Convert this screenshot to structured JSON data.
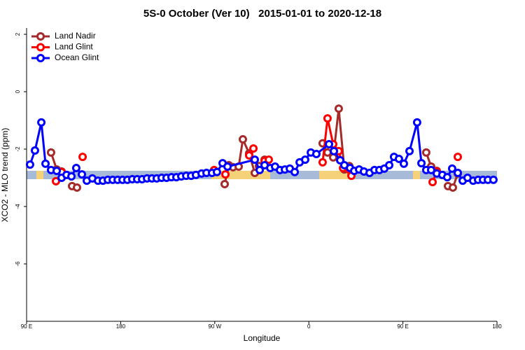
{
  "chart_data": {
    "type": "line",
    "title": "5S-0 October (Ver 10)   2015-01-01 to 2020-12-18",
    "x_label": "Longitude",
    "y_label": "XCO2 - MLO trend (ppm)",
    "xlim": [
      90,
      540
    ],
    "ylim": [
      -8,
      2.2
    ],
    "xticks": [
      {
        "value": 90,
        "label": "90 E"
      },
      180,
      {
        "value": 270,
        "label": "90 W"
      },
      {
        "value": 360,
        "label": "0"
      },
      {
        "value": 450,
        "label": "90 E"
      },
      {
        "value": 540,
        "label": "180"
      }
    ],
    "yticks": [
      -6,
      -4,
      -2,
      0,
      2
    ],
    "legend": "top-left",
    "series": [
      {
        "name": "Land Nadir",
        "color": "#a52a2a",
        "x": [
          113.4,
          118.8,
          123.5,
          null,
          133.5,
          138.2,
          null,
          279.5,
          283.5,
          287.5,
          292.9,
          296.9,
          302.9,
          308.3,
          312.3,
          317.7,
          null,
          373.2,
          377.9,
          383.3,
          388.6,
          394,
          398.7,
          null,
          472.3,
          477,
          482.4,
          null,
          493.1,
          497.8,
          502.5
        ],
        "values": [
          -2.12,
          -2.71,
          -2.78,
          null,
          -3.29,
          -3.34,
          null,
          -3.22,
          -2.56,
          -2.63,
          -2.61,
          -1.66,
          -2.15,
          -2.83,
          -2.59,
          -2.37,
          null,
          -1.8,
          -2.12,
          -2.29,
          -0.59,
          -2.71,
          -2.59,
          null,
          -2.12,
          -2.61,
          -2.76,
          null,
          -3.29,
          -3.34,
          -2.85
        ]
      },
      {
        "name": "Land Glint",
        "color": "#ff0000",
        "x": [
          118.1,
          123.5,
          null,
          143.6,
          null,
          269.4,
          null,
          280.2,
          null,
          302.9,
          307,
          null,
          317.7,
          321.7,
          null,
          373.2,
          377.9,
          383.3,
          388.6,
          392.7,
          400.7,
          null,
          478.4,
          482.4,
          null,
          502.5
        ],
        "values": [
          -3.12,
          -2.8,
          null,
          -2.27,
          null,
          -2.73,
          null,
          -2.88,
          null,
          -2.22,
          -1.98,
          null,
          -2.41,
          -2.37,
          null,
          -2.46,
          -0.93,
          -1.83,
          -2.07,
          -2.66,
          -2.93,
          null,
          -3.15,
          -2.78,
          null,
          -2.27
        ]
      },
      {
        "name": "Ocean Glint",
        "color": "#0000ff",
        "x": [
          93.3,
          98,
          104.1,
          108.1,
          113.4,
          118.8,
          123.5,
          128.2,
          132.9,
          137.5,
          142.9,
          147.6,
          152.9,
          158.3,
          163,
          167.7,
          172.4,
          177.1,
          181.8,
          186.4,
          191.1,
          195.8,
          200.5,
          205.2,
          209.9,
          214.5,
          219.2,
          223.9,
          228.6,
          233.3,
          238,
          242.7,
          247.4,
          252,
          257.4,
          262.1,
          267.4,
          272.1,
          277.5,
          282.2,
          308.3,
          313,
          317.7,
          323.1,
          327.7,
          332.4,
          337.1,
          341.8,
          346.5,
          351.2,
          356.5,
          361.9,
          367.2,
          379.3,
          384,
          390,
          394,
          399.4,
          403.4,
          408.1,
          412.7,
          418.1,
          422.8,
          427.5,
          432.2,
          436.9,
          441.5,
          446.2,
          450.9,
          456.3,
          463.6,
          467.7,
          472.3,
          477,
          482.4,
          487.7,
          492.4,
          497.1,
          502.5,
          507.2,
          511.8,
          517.2,
          521.9,
          526.6,
          531.3,
          536.6
        ],
        "values": [
          -2.54,
          -2.05,
          -1.07,
          -2.51,
          -2.73,
          -2.76,
          -3.0,
          -2.9,
          -2.95,
          -2.66,
          -2.88,
          -3.1,
          -3.02,
          -3.1,
          -3.1,
          -3.07,
          -3.07,
          -3.07,
          -3.07,
          -3.07,
          -3.05,
          -3.05,
          -3.05,
          -3.02,
          -3.02,
          -3.02,
          -3.0,
          -3.0,
          -2.98,
          -2.98,
          -2.95,
          -2.93,
          -2.93,
          -2.9,
          -2.85,
          -2.83,
          -2.83,
          -2.8,
          -2.49,
          -2.61,
          -2.37,
          -2.73,
          -2.56,
          -2.66,
          -2.61,
          -2.73,
          -2.71,
          -2.68,
          -2.8,
          -2.46,
          -2.37,
          -2.12,
          -2.17,
          -1.83,
          -2.07,
          -2.39,
          -2.56,
          -2.66,
          -2.76,
          -2.71,
          -2.78,
          -2.83,
          -2.73,
          -2.73,
          -2.68,
          -2.56,
          -2.27,
          -2.34,
          -2.51,
          -2.07,
          -1.07,
          -2.49,
          -2.73,
          -2.73,
          -2.85,
          -2.9,
          -2.98,
          -2.68,
          -2.83,
          -3.1,
          -3.0,
          -3.1,
          -3.07,
          -3.07,
          -3.07,
          -3.07
        ]
      }
    ]
  }
}
